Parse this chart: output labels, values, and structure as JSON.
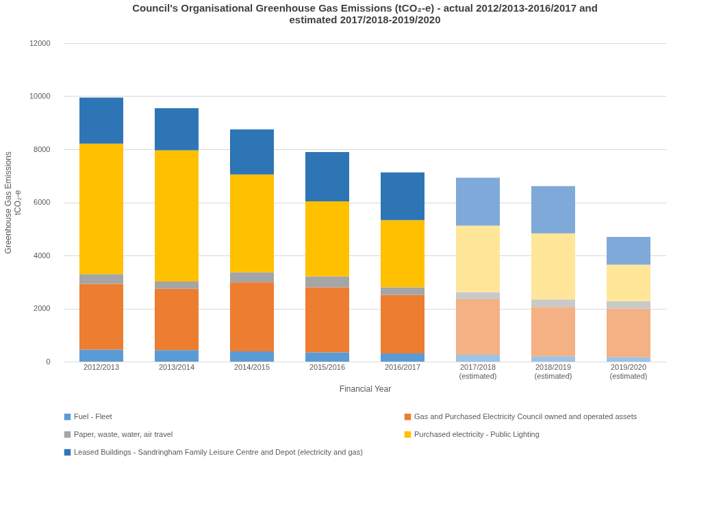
{
  "chart_data": {
    "type": "bar",
    "stacked": true,
    "title": "Council's Organisational Greenhouse Gas Emissions (tCO₂-e) - actual 2012/2013-2016/2017 and estimated 2017/2018-2019/2020",
    "xlabel": "Financial Year",
    "ylabel": "Greenhouse Gas Emissions tCO₂-e",
    "categories": [
      "2012/2013",
      "2013/2014",
      "2014/2015",
      "2015/2016",
      "2016/2017",
      "2017/2018 (estimated)",
      "2018/2019 (estimated)",
      "2019/2020 (estimated)"
    ],
    "series": [
      {
        "name": "Fuel - Fleet",
        "color": "#5b9bd5",
        "colors": [
          "#5b9bd5",
          "#5b9bd5",
          "#5b9bd5",
          "#5b9bd5",
          "#5b9bd5",
          "#9dc3e6",
          "#9dc3e6",
          "#9dc3e6"
        ],
        "values": [
          450,
          430,
          390,
          350,
          310,
          260,
          200,
          170
        ]
      },
      {
        "name": "Gas and Purchased Electricity Council owned and operated assets",
        "color": "#ed7d31",
        "colors": [
          "#ed7d31",
          "#ed7d31",
          "#ed7d31",
          "#ed7d31",
          "#ed7d31",
          "#f4b183",
          "#f4b183",
          "#f4b183"
        ],
        "values": [
          2480,
          2310,
          2600,
          2450,
          2200,
          2090,
          1860,
          1830
        ]
      },
      {
        "name": "Paper, waste, water, air travel",
        "color": "#a5a5a5",
        "colors": [
          "#a5a5a5",
          "#a5a5a5",
          "#a5a5a5",
          "#a5a5a5",
          "#a5a5a5",
          "#c9c9c9",
          "#c9c9c9",
          "#c9c9c9"
        ],
        "values": [
          370,
          280,
          380,
          410,
          290,
          270,
          280,
          280
        ]
      },
      {
        "name": "Purchased electricity - Public Lighting",
        "color": "#ffc000",
        "colors": [
          "#ffc000",
          "#ffc000",
          "#ffc000",
          "#ffc000",
          "#ffc000",
          "#ffe699",
          "#ffe699",
          "#ffe699"
        ],
        "values": [
          4910,
          4940,
          3680,
          2830,
          2530,
          2500,
          2490,
          1370
        ]
      },
      {
        "name": "Leased Buildings - Sandringham Family Leisure Centre and Depot (electricity and gas)",
        "color": "#2e75b6",
        "colors": [
          "#2e75b6",
          "#2e75b6",
          "#2e75b6",
          "#2e75b6",
          "#2e75b6",
          "#7fa9d9",
          "#7fa9d9",
          "#7fa9d9"
        ],
        "values": [
          1740,
          1590,
          1700,
          1860,
          1800,
          1810,
          1780,
          1050
        ]
      }
    ],
    "ylim": [
      0,
      12000
    ],
    "yticks": [
      0,
      2000,
      4000,
      6000,
      8000,
      10000,
      12000
    ],
    "grid": "y",
    "legend": "bottom"
  }
}
